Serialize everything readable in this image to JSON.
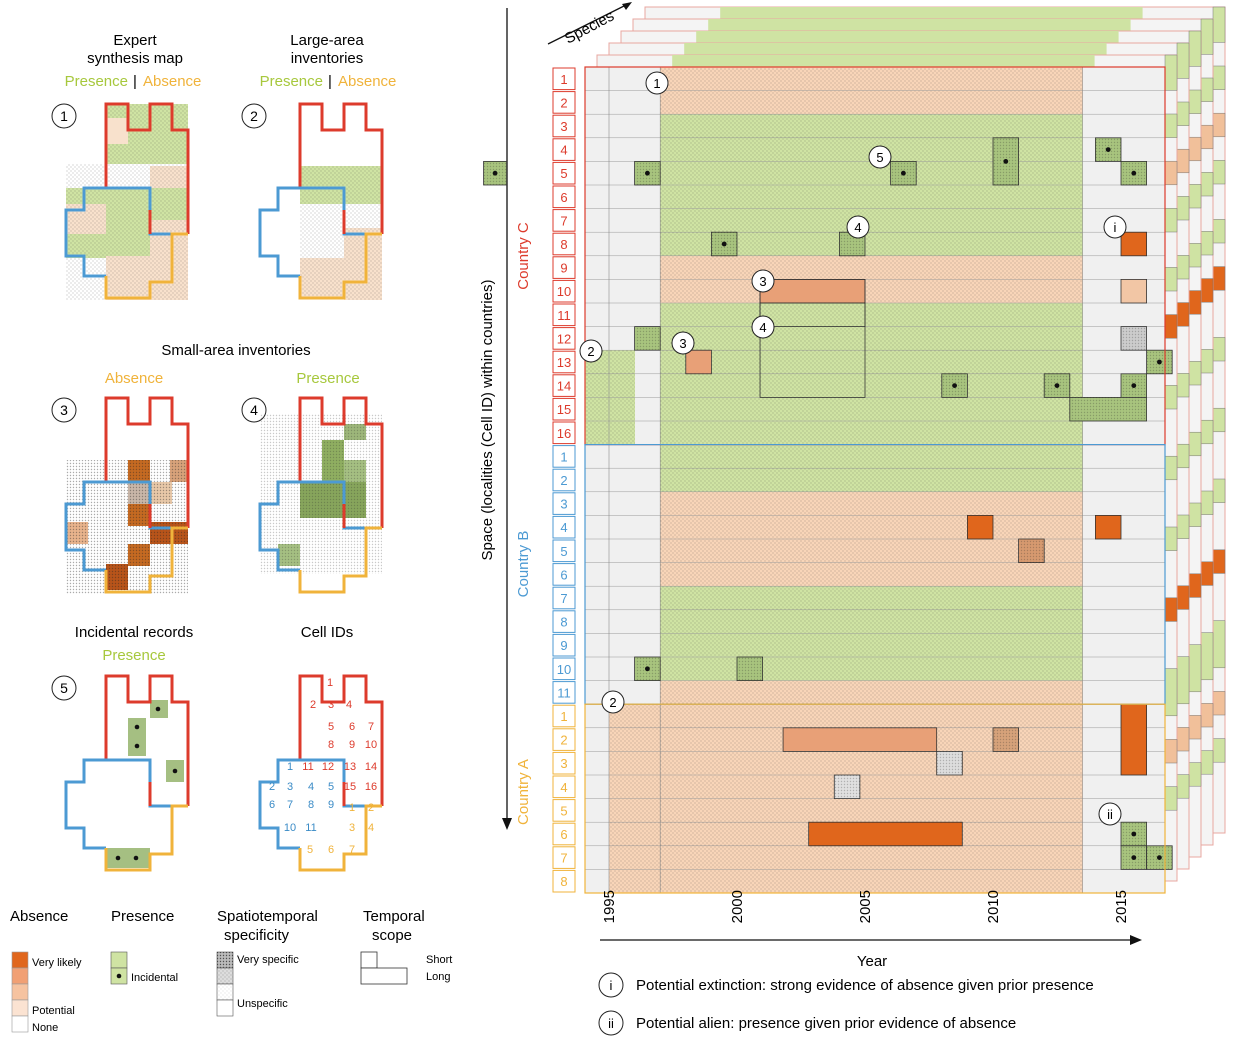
{
  "colors": {
    "presence": "#a7c83d",
    "absence": "#f0b33b",
    "countryA": "#f0b33b",
    "countryB": "#4c9ad3",
    "countryC": "#dd3b2c",
    "presence_fill": "#cfe3a3",
    "absence_fill": "#f8d5b8",
    "absence_strong": "#d9661c",
    "gray_fill": "#f0f0f0"
  },
  "panels": {
    "p1": {
      "title1": "Expert",
      "title2": "synthesis map",
      "presence": "Presence",
      "sep": "|",
      "absence": "Absence",
      "num": "1"
    },
    "p2": {
      "title1": "Large-area",
      "title2": "inventories",
      "presence": "Presence",
      "sep": "|",
      "absence": "Absence",
      "num": "2"
    },
    "small_title": "Small-area inventories",
    "p3": {
      "label": "Absence",
      "num": "3"
    },
    "p4": {
      "label": "Presence",
      "num": "4"
    },
    "p5": {
      "title": "Incidental records",
      "label": "Presence",
      "num": "5"
    },
    "p6": {
      "title": "Cell IDs"
    }
  },
  "cell_ids": {
    "c": [
      "1",
      "2",
      "3",
      "4",
      "5",
      "6",
      "7",
      "8",
      "9",
      "10",
      "11",
      "12",
      "13",
      "14",
      "15",
      "16"
    ],
    "b": [
      "1",
      "2",
      "3",
      "4",
      "5",
      "6",
      "7",
      "8",
      "9",
      "10",
      "11"
    ],
    "a": [
      "1",
      "2",
      "3",
      "4",
      "5",
      "6",
      "7",
      "8"
    ]
  },
  "legend": {
    "absence": {
      "title": "Absence",
      "very_likely": "Very likely",
      "potential": "Potential",
      "none": "None"
    },
    "presence": {
      "title": "Presence",
      "incidental": "Incidental"
    },
    "spec": {
      "title1": "Spatiotemporal",
      "title2": "specificity",
      "very": "Very specific",
      "unspecific": "Unspecific"
    },
    "scope": {
      "title1": "Temporal",
      "title2": "scope",
      "short": "Short",
      "long": "Long"
    }
  },
  "matrix": {
    "species_label": "Species",
    "space_label": "Space (localities (Cell ID) within countries)",
    "year_label": "Year",
    "countries": {
      "c": "Country C",
      "b": "Country B",
      "a": "Country A"
    },
    "years": [
      "1995",
      "2000",
      "2005",
      "2010",
      "2015"
    ],
    "callouts": [
      "1",
      "2",
      "3",
      "4",
      "5",
      "i",
      "ii"
    ],
    "note_i": {
      "mark": "i",
      "text": "Potential extinction: strong evidence of absence given prior presence"
    },
    "note_ii": {
      "mark": "ii",
      "text": "Potential alien: presence given prior evidence of absence"
    }
  }
}
